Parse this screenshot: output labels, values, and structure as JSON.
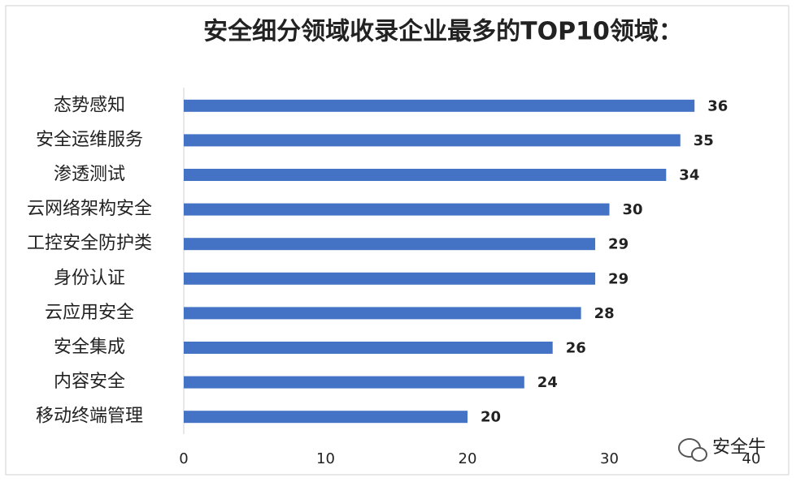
{
  "chart_data": {
    "type": "barh",
    "title": "安全细分领域收录企业最多的TOP10领域：",
    "categories": [
      "态势感知",
      "安全运维服务",
      "渗透测试",
      "云网络架构安全",
      "工控安全防护类",
      "身份认证",
      "云应用安全",
      "安全集成",
      "内容安全",
      "移动终端管理"
    ],
    "values": [
      36,
      35,
      34,
      30,
      29,
      29,
      28,
      26,
      24,
      20
    ],
    "color": "#4472c4",
    "xlim": [
      0,
      40
    ],
    "xticks": [
      0,
      10,
      20,
      30,
      40
    ],
    "grid": false,
    "watermark": "安全牛"
  }
}
